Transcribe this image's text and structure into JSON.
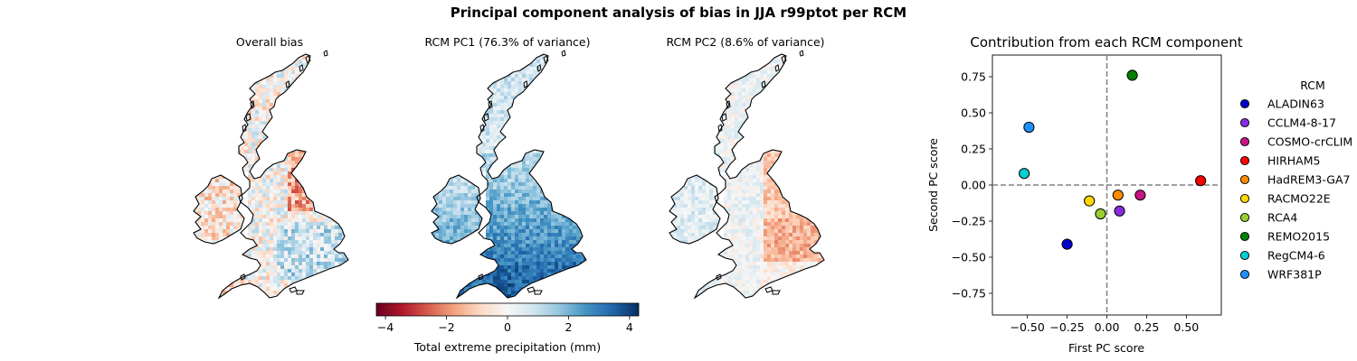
{
  "figure": {
    "suptitle": "Principal component analysis of bias in JJA r99ptot per RCM"
  },
  "maps": [
    {
      "title": "Overall bias",
      "pattern": "mixed"
    },
    {
      "title": "RCM PC1 (76.3% of variance)",
      "pattern": "blue"
    },
    {
      "title": "RCM PC2 (8.6% of variance)",
      "pattern": "mixed-red"
    }
  ],
  "colorbar": {
    "label": "Total extreme precipitation (mm)",
    "range": [
      -4.3,
      4.3
    ],
    "ticks": [
      -4,
      -2,
      0,
      2,
      4
    ],
    "tick_labels": [
      "−4",
      "−2",
      "0",
      "2",
      "4"
    ],
    "colormap": "RdBu",
    "colors": [
      "#67001f",
      "#b2182b",
      "#d6604d",
      "#f4a582",
      "#fddbc7",
      "#f7f7f7",
      "#d1e5f0",
      "#92c5de",
      "#4393c3",
      "#2166ac",
      "#053061"
    ]
  },
  "chart_data": {
    "type": "scatter",
    "title": "Contribution from each RCM component",
    "xlabel": "First PC score",
    "ylabel": "Second PC score",
    "xlim": [
      -0.72,
      0.72
    ],
    "ylim": [
      -0.9,
      0.9
    ],
    "xticks": [
      -0.5,
      -0.25,
      0.0,
      0.25,
      0.5
    ],
    "xtick_labels": [
      "−0.50",
      "−0.25",
      "0.00",
      "0.25",
      "0.50"
    ],
    "yticks": [
      -0.75,
      -0.5,
      -0.25,
      0.0,
      0.25,
      0.5,
      0.75
    ],
    "ytick_labels": [
      "−0.75",
      "−0.50",
      "−0.25",
      "0.00",
      "0.25",
      "0.50",
      "0.75"
    ],
    "grid": false,
    "reference_lines": {
      "x": 0,
      "y": 0,
      "style": "dashed",
      "color": "#808080"
    },
    "legend": {
      "title": "RCM",
      "placement": "outside-right"
    },
    "series": [
      {
        "name": "ALADIN63",
        "color": "#0000cd",
        "x": -0.25,
        "y": -0.41
      },
      {
        "name": "CCLM4-8-17",
        "color": "#8a2be2",
        "x": 0.08,
        "y": -0.18
      },
      {
        "name": "COSMO-crCLIM",
        "color": "#c71585",
        "x": 0.21,
        "y": -0.07
      },
      {
        "name": "HIRHAM5",
        "color": "#ff0000",
        "x": 0.59,
        "y": 0.03
      },
      {
        "name": "HadREM3-GA7",
        "color": "#ff8c00",
        "x": 0.07,
        "y": -0.07
      },
      {
        "name": "RACMO22E",
        "color": "#ffd700",
        "x": -0.11,
        "y": -0.11
      },
      {
        "name": "RCA4",
        "color": "#9acd32",
        "x": -0.04,
        "y": -0.2
      },
      {
        "name": "REMO2015",
        "color": "#008000",
        "x": 0.16,
        "y": 0.76
      },
      {
        "name": "RegCM4-6",
        "color": "#00ced1",
        "x": -0.52,
        "y": 0.08
      },
      {
        "name": "WRF381P",
        "color": "#1e90ff",
        "x": -0.49,
        "y": 0.4
      }
    ]
  }
}
